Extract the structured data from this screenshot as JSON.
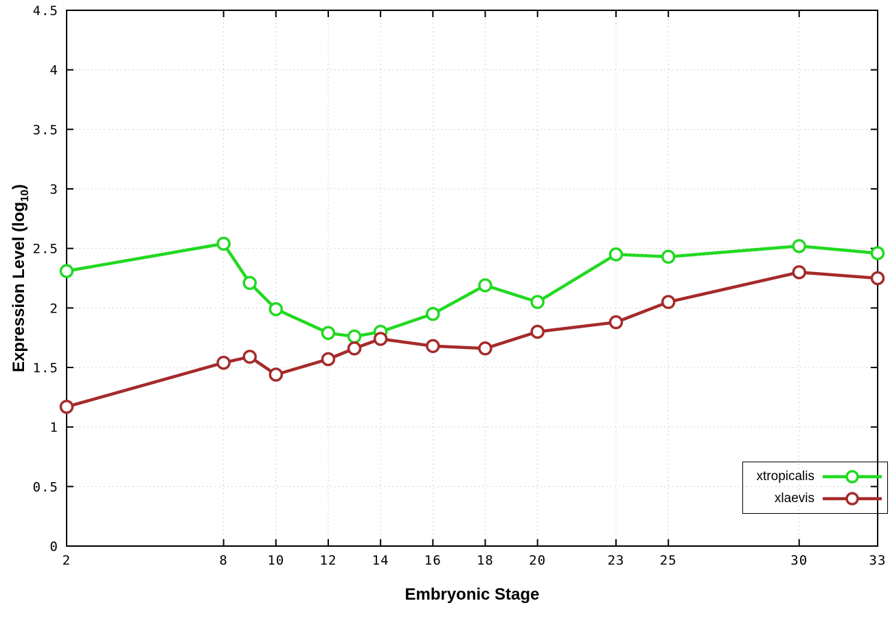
{
  "chart_data": {
    "type": "line",
    "title": "",
    "xlabel": "Embryonic Stage",
    "ylabel": "Expression Level (log10)",
    "ylabel_parts": {
      "pre": "Expression Level (log",
      "sub": "10",
      "post": ")"
    },
    "xlim": [
      2,
      33
    ],
    "ylim": [
      0,
      4.5
    ],
    "x_ticks": [
      2,
      8,
      10,
      12,
      14,
      16,
      18,
      20,
      23,
      25,
      30,
      33
    ],
    "y_ticks": [
      0,
      0.5,
      1,
      1.5,
      2,
      2.5,
      3,
      3.5,
      4,
      4.5
    ],
    "grid": true,
    "legend_position": "bottom-right",
    "x": [
      2,
      8,
      9,
      10,
      12,
      13,
      14,
      16,
      18,
      20,
      23,
      25,
      30,
      33
    ],
    "series": [
      {
        "name": "xtropicalis",
        "color": "#21d921",
        "values": [
          2.31,
          2.54,
          2.21,
          1.99,
          1.79,
          1.76,
          1.8,
          1.95,
          2.19,
          2.05,
          2.45,
          2.43,
          2.52,
          2.46
        ]
      },
      {
        "name": "xlaevis",
        "color": "#a52a2a",
        "values": [
          1.17,
          1.54,
          1.59,
          1.44,
          1.57,
          1.66,
          1.74,
          1.68,
          1.66,
          1.8,
          1.88,
          2.05,
          2.3,
          2.25
        ]
      }
    ]
  }
}
